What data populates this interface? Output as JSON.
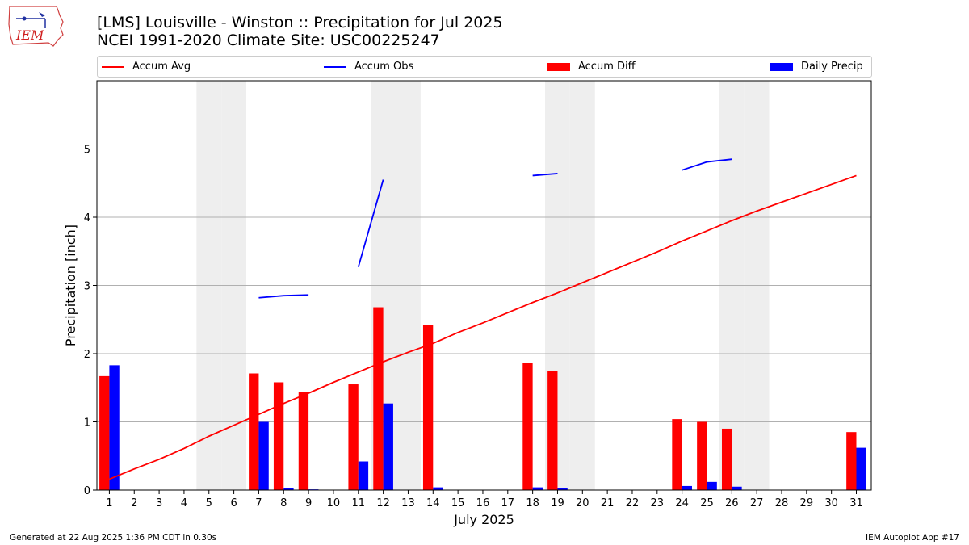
{
  "header": {
    "title_line1": "[LMS] Louisville - Winston :: Precipitation for Jul 2025",
    "title_line2": "NCEI 1991-2020 Climate Site: USC00225247",
    "logo_text": "IEM"
  },
  "footer": {
    "generated": "Generated at 22 Aug 2025 1:36 PM CDT in 0.30s",
    "app": "IEM Autoplot App #17"
  },
  "colors": {
    "accum_avg": "#ff0000",
    "accum_obs": "#0000ff",
    "accum_diff": "#ff0000",
    "daily_precip": "#0000ff",
    "weekend_shade": "#eeeeee",
    "grid": "#b0b0b0"
  },
  "chart_data": {
    "type": "bar",
    "xlabel": "July 2025",
    "ylabel": "Precipitation [inch]",
    "ylim": [
      0,
      6
    ],
    "yticks": [
      0,
      1,
      2,
      3,
      4,
      5
    ],
    "grid": "horizontal",
    "legend_position": "top",
    "x": [
      1,
      2,
      3,
      4,
      5,
      6,
      7,
      8,
      9,
      10,
      11,
      12,
      13,
      14,
      15,
      16,
      17,
      18,
      19,
      20,
      21,
      22,
      23,
      24,
      25,
      26,
      27,
      28,
      29,
      30,
      31
    ],
    "shaded_days": [
      5,
      6,
      12,
      13,
      19,
      20,
      26,
      27
    ],
    "series": [
      {
        "name": "Accum Avg",
        "kind": "line",
        "values": [
          0.16,
          0.31,
          0.45,
          0.61,
          0.79,
          0.95,
          1.11,
          1.27,
          1.42,
          1.58,
          1.73,
          1.88,
          2.02,
          2.15,
          2.31,
          2.45,
          2.6,
          2.75,
          2.89,
          3.04,
          3.19,
          3.34,
          3.49,
          3.65,
          3.8,
          3.95,
          4.09,
          4.22,
          4.35,
          4.48,
          4.61
        ]
      },
      {
        "name": "Accum Obs",
        "kind": "line",
        "values": [
          null,
          null,
          null,
          null,
          null,
          null,
          2.82,
          2.85,
          2.86,
          null,
          3.27,
          4.55,
          null,
          null,
          null,
          null,
          null,
          4.61,
          4.64,
          null,
          null,
          null,
          null,
          4.69,
          4.81,
          4.85,
          null,
          null,
          null,
          null,
          null
        ]
      },
      {
        "name": "Accum Diff",
        "kind": "bar",
        "values": [
          1.67,
          0,
          0,
          0,
          0,
          0,
          1.71,
          1.58,
          1.44,
          0,
          1.55,
          2.68,
          0,
          2.42,
          0,
          0,
          0,
          1.86,
          1.74,
          0,
          0,
          0,
          0,
          1.04,
          1.0,
          0.9,
          0,
          0,
          0,
          0,
          0.85
        ]
      },
      {
        "name": "Daily Precip",
        "kind": "bar",
        "values": [
          1.83,
          0,
          0,
          0,
          0,
          0,
          1.0,
          0.03,
          0.01,
          0,
          0.42,
          1.27,
          0,
          0.04,
          0,
          0,
          0,
          0.04,
          0.03,
          0,
          0,
          0,
          0,
          0.06,
          0.12,
          0.05,
          0,
          0,
          0,
          0,
          0.62
        ]
      }
    ]
  }
}
